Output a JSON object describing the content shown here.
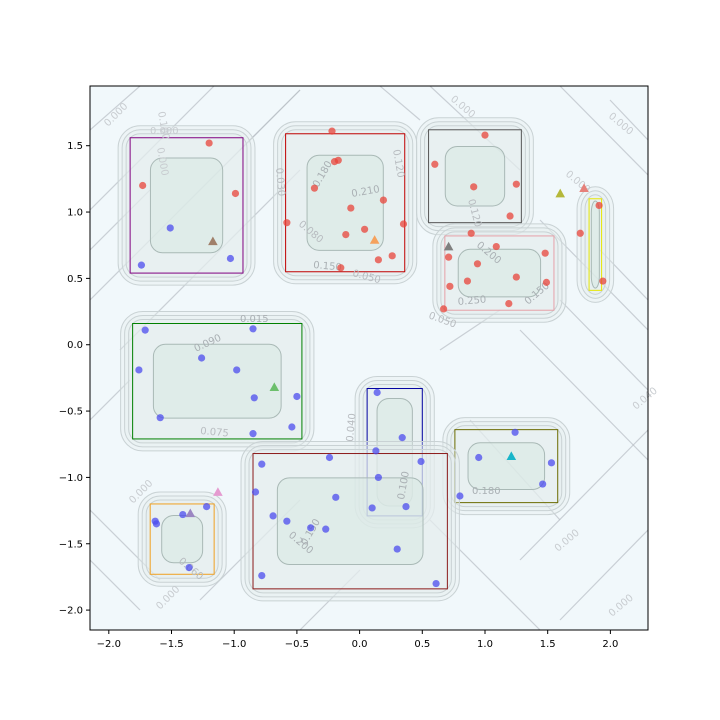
{
  "chart_data": {
    "type": "scatter",
    "title": "",
    "xlabel": "",
    "ylabel": "",
    "xlim": [
      -2.15,
      2.3
    ],
    "ylim": [
      -2.15,
      1.95
    ],
    "x_ticks": [
      -2.0,
      -1.5,
      -1.0,
      -0.5,
      0.0,
      0.5,
      1.0,
      1.5,
      2.0
    ],
    "y_ticks": [
      -2.0,
      -1.5,
      -1.0,
      -0.5,
      0.0,
      0.5,
      1.0,
      1.5
    ],
    "x_tick_labels": [
      "−2.0",
      "−1.5",
      "−1.0",
      "−0.5",
      "0.0",
      "0.5",
      "1.0",
      "1.5",
      "2.0"
    ],
    "y_tick_labels": [
      "−2.0",
      "−1.5",
      "−1.0",
      "−0.5",
      "0.0",
      "0.5",
      "1.0",
      "1.5"
    ],
    "grid": false,
    "background_color": "#f1f8fb",
    "series": [
      {
        "marker": "circle",
        "color": "#e8443a",
        "points": [
          [
            -1.73,
            1.2
          ],
          [
            -1.2,
            1.52
          ],
          [
            -0.99,
            1.14
          ],
          [
            -0.58,
            0.92
          ],
          [
            -0.36,
            1.18
          ],
          [
            -0.22,
            1.61
          ],
          [
            -0.2,
            1.38
          ],
          [
            -0.17,
            1.39
          ],
          [
            -0.15,
            0.58
          ],
          [
            -0.11,
            0.83
          ],
          [
            -0.07,
            1.03
          ],
          [
            0.04,
            0.87
          ],
          [
            0.15,
            0.64
          ],
          [
            0.19,
            1.09
          ],
          [
            0.26,
            0.67
          ],
          [
            0.35,
            0.91
          ],
          [
            0.6,
            1.36
          ],
          [
            0.67,
            0.27
          ],
          [
            0.72,
            0.44
          ],
          [
            0.71,
            0.66
          ],
          [
            0.86,
            0.48
          ],
          [
            0.89,
            0.84
          ],
          [
            0.91,
            1.19
          ],
          [
            0.94,
            0.61
          ],
          [
            1.0,
            1.58
          ],
          [
            1.09,
            0.74
          ],
          [
            1.19,
            0.31
          ],
          [
            1.2,
            0.97
          ],
          [
            1.25,
            1.21
          ],
          [
            1.25,
            0.51
          ],
          [
            1.48,
            0.69
          ],
          [
            1.49,
            0.47
          ],
          [
            1.76,
            0.84
          ],
          [
            1.91,
            1.05
          ],
          [
            1.94,
            0.48
          ]
        ]
      },
      {
        "marker": "circle",
        "color": "#4c4ced",
        "points": [
          [
            -1.71,
            0.11
          ],
          [
            -1.76,
            -0.19
          ],
          [
            -1.59,
            -0.55
          ],
          [
            -1.51,
            0.88
          ],
          [
            -1.26,
            -0.1
          ],
          [
            -1.74,
            0.6
          ],
          [
            -1.03,
            0.65
          ],
          [
            -0.98,
            -0.19
          ],
          [
            -0.84,
            -0.4
          ],
          [
            -0.85,
            -0.67
          ],
          [
            -0.85,
            0.12
          ],
          [
            -0.78,
            -0.9
          ],
          [
            -0.5,
            -0.39
          ],
          [
            -0.54,
            -0.62
          ],
          [
            -0.83,
            -1.11
          ],
          [
            -0.69,
            -1.29
          ],
          [
            -0.58,
            -1.33
          ],
          [
            -0.78,
            -1.74
          ],
          [
            -0.39,
            -1.38
          ],
          [
            -0.27,
            -1.39
          ],
          [
            -0.24,
            -0.85
          ],
          [
            -0.19,
            -1.15
          ],
          [
            0.14,
            -0.36
          ],
          [
            0.13,
            -0.8
          ],
          [
            0.15,
            -1.0
          ],
          [
            0.1,
            -1.23
          ],
          [
            0.3,
            -1.54
          ],
          [
            0.34,
            -0.7
          ],
          [
            0.37,
            -1.22
          ],
          [
            0.49,
            -0.88
          ],
          [
            0.61,
            -1.8
          ],
          [
            0.8,
            -1.14
          ],
          [
            0.95,
            -0.85
          ],
          [
            1.24,
            -0.66
          ],
          [
            1.46,
            -1.05
          ],
          [
            1.53,
            -0.89
          ],
          [
            -1.63,
            -1.33
          ],
          [
            -1.62,
            -1.35
          ],
          [
            -1.41,
            -1.28
          ],
          [
            -1.36,
            -1.68
          ],
          [
            -1.22,
            -1.22
          ]
        ]
      }
    ],
    "markers": [
      {
        "x": -1.17,
        "y": 0.78,
        "color": "#a0806a",
        "marker": "triangle"
      },
      {
        "x": 0.12,
        "y": 0.79,
        "color": "#f5a25d",
        "marker": "triangle"
      },
      {
        "x": 0.71,
        "y": 0.74,
        "color": "#7f7f7f",
        "marker": "triangle"
      },
      {
        "x": 1.6,
        "y": 1.14,
        "color": "#b5b83a",
        "marker": "triangle"
      },
      {
        "x": 1.79,
        "y": 1.18,
        "color": "#e6807a",
        "marker": "triangle"
      },
      {
        "x": -0.68,
        "y": -0.32,
        "color": "#6cbf6c",
        "marker": "triangle"
      },
      {
        "x": 1.21,
        "y": -0.84,
        "color": "#19b5c9",
        "marker": "triangle"
      },
      {
        "x": -1.35,
        "y": -1.27,
        "color": "#9b86c2",
        "marker": "triangle"
      },
      {
        "x": -1.13,
        "y": -1.11,
        "color": "#e59bd0",
        "marker": "triangle"
      }
    ],
    "rectangles": [
      {
        "x0": -1.83,
        "x1": -0.93,
        "y0": 0.54,
        "y1": 1.56,
        "color": "#800080"
      },
      {
        "x0": -0.59,
        "x1": 0.36,
        "y0": 0.55,
        "y1": 1.59,
        "color": "#c00000"
      },
      {
        "x0": 0.55,
        "x1": 1.29,
        "y0": 0.92,
        "y1": 1.62,
        "color": "#555555"
      },
      {
        "x0": 0.68,
        "x1": 1.55,
        "y0": 0.26,
        "y1": 0.82,
        "color": "#e6a0a8"
      },
      {
        "x0": 1.83,
        "x1": 1.93,
        "y0": 0.41,
        "y1": 1.1,
        "color": "#e6e600"
      },
      {
        "x0": -1.81,
        "x1": -0.46,
        "y0": -0.71,
        "y1": 0.16,
        "color": "#008000"
      },
      {
        "x0": 0.06,
        "x1": 0.5,
        "y0": -1.29,
        "y1": -0.33,
        "color": "#0000a0"
      },
      {
        "x0": 0.76,
        "x1": 1.58,
        "y0": -1.19,
        "y1": -0.64,
        "color": "#6b6b00"
      },
      {
        "x0": -0.85,
        "x1": 0.7,
        "y0": -1.84,
        "y1": -0.82,
        "color": "#8b1a1a"
      },
      {
        "x0": -1.67,
        "x1": -1.16,
        "y0": -1.73,
        "y1": -1.2,
        "color": "#f0a020"
      }
    ],
    "contour_labels": [
      "0.000",
      "0.000",
      "0.100",
      "0.000",
      "0.030",
      "0.120",
      "0.180",
      "0.210",
      "0.150",
      "0.050",
      "0.080",
      "0.000",
      "0.120",
      "0.000",
      "0.200",
      "0.250",
      "0.150",
      "0.050",
      "0.015",
      "0.090",
      "0.075",
      "0.040",
      "0.000",
      "0.060",
      "0.180",
      "0.100",
      "0.200",
      "0.150",
      "0.000",
      "0.000",
      "0.000",
      "0.000",
      "0.040"
    ]
  }
}
